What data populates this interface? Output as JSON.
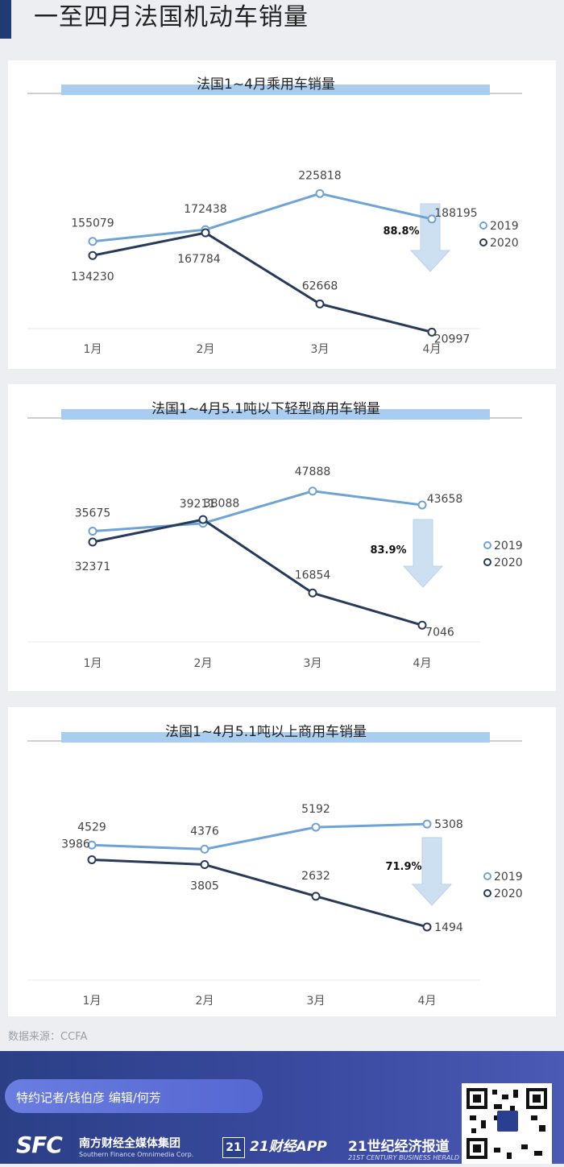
{
  "page": {
    "title": "一至四月法国机动车销量"
  },
  "source": "数据来源：CCFA",
  "footer": {
    "credit": "特约记者/钱伯彦 编辑/何芳",
    "brand_sfc": "SFC",
    "brand_sfc_cn": "南方财经全媒体集团",
    "brand_sfc_en": "Southern Finance Omnimedia Corp.",
    "brand_app_logo": "21",
    "brand_app": "21财经APP",
    "brand_herald": "21世纪经济报道",
    "brand_herald_en": "21ST CENTURY BUSINESS HERALD"
  },
  "colors": {
    "color_2019": "#6fa3d6",
    "color_2020": "#273a5a",
    "title_band": "#a9cdf0",
    "arrow": "#cde0f2"
  },
  "chart_data": [
    {
      "type": "line",
      "title": "法国1~4月乘用车销量",
      "categories": [
        "1月",
        "2月",
        "3月",
        "4月"
      ],
      "series": [
        {
          "name": "2019",
          "values": [
            155079,
            172438,
            225818,
            188195
          ]
        },
        {
          "name": "2020",
          "values": [
            134230,
            167784,
            62668,
            20997
          ]
        }
      ],
      "annotation": "88.8%",
      "ylim": [
        0,
        250000
      ],
      "legend": "right",
      "grid": false
    },
    {
      "type": "line",
      "title": "法国1~4月5.1吨以下轻型商用车销量",
      "categories": [
        "1月",
        "2月",
        "3月",
        "4月"
      ],
      "series": [
        {
          "name": "2019",
          "values": [
            35675,
            38088,
            47888,
            43658
          ]
        },
        {
          "name": "2020",
          "values": [
            32371,
            39211,
            16854,
            7046
          ]
        }
      ],
      "annotation": "83.9%",
      "ylim": [
        0,
        52000
      ],
      "legend": "right",
      "grid": false
    },
    {
      "type": "line",
      "title": "法国1~4月5.1吨以上商用车销量",
      "categories": [
        "1月",
        "2月",
        "3月",
        "4月"
      ],
      "series": [
        {
          "name": "2019",
          "values": [
            4529,
            4376,
            5192,
            5308
          ]
        },
        {
          "name": "2020",
          "values": [
            3986,
            3805,
            2632,
            1494
          ]
        }
      ],
      "annotation": "71.9%",
      "ylim": [
        0,
        6000
      ],
      "legend": "right",
      "grid": false
    }
  ]
}
